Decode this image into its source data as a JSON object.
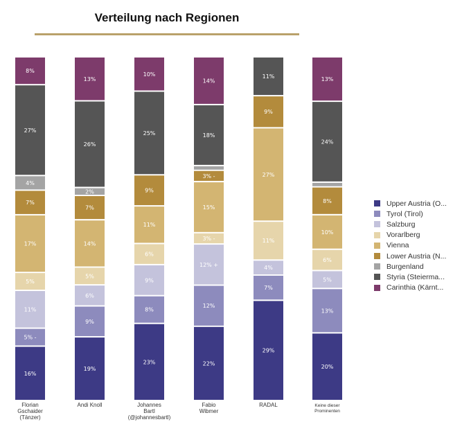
{
  "chart_data": {
    "type": "bar",
    "stacked": true,
    "title": "Verteilung nach Regionen",
    "categories": [
      "Florian Gschaider (Tänzer)",
      "Andi Knoll",
      "Johannes Bartl (@johannesbartl)",
      "Fabio Wibmer",
      "RADAL",
      "Keine dieser Prominenten"
    ],
    "category_lines": [
      [
        "Florian",
        "Gschaider",
        "(Tänzer)"
      ],
      [
        "Andi Knoll"
      ],
      [
        "Johannes",
        "Bartl",
        "(@johannesbartl)"
      ],
      [
        "Fabio",
        "Wibmer"
      ],
      [
        "RADAL"
      ],
      [
        "Keine dieser",
        "Prominenten"
      ]
    ],
    "series": [
      {
        "name": "Upper Austria (O...",
        "color": "#3d3a85",
        "values": [
          16,
          19,
          23,
          22,
          29,
          20
        ],
        "labels": [
          "16%",
          "19%",
          "23%",
          "22%",
          "29%",
          "20%"
        ]
      },
      {
        "name": "Tyrol (Tirol)",
        "color": "#8d8bbd",
        "values": [
          5,
          9,
          8,
          12,
          7,
          13
        ],
        "labels": [
          "5% -",
          "9%",
          "8%",
          "12%",
          "7%",
          "13%"
        ]
      },
      {
        "name": "Salzburg",
        "color": "#c4c3dc",
        "values": [
          11,
          6,
          9,
          12,
          4,
          5
        ],
        "labels": [
          "11%",
          "6%",
          "9%",
          "12% +",
          "4%",
          "5%"
        ]
      },
      {
        "name": "Vorarlberg",
        "color": "#e6d5ab",
        "values": [
          5,
          5,
          6,
          3,
          11,
          6
        ],
        "labels": [
          "5%",
          "5%",
          "6%",
          "3% -",
          "11%",
          "6%"
        ]
      },
      {
        "name": "Vienna",
        "color": "#d3b572",
        "values": [
          17,
          14,
          11,
          15,
          27,
          10
        ],
        "labels": [
          "17%",
          "14%",
          "11%",
          "15%",
          "27%",
          "10%"
        ]
      },
      {
        "name": "Lower Austria (N...",
        "color": "#b38b3c",
        "values": [
          7,
          7,
          9,
          3,
          9,
          8
        ],
        "labels": [
          "7%",
          "7%",
          "9%",
          "3% -",
          "9%",
          "8%"
        ]
      },
      {
        "name": "Burgenland",
        "color": "#a4a4a4",
        "values": [
          4,
          2,
          0,
          1,
          0,
          1
        ],
        "labels": [
          "4%",
          "2%",
          "",
          "",
          "",
          ""
        ]
      },
      {
        "name": "Styria (Steierma...",
        "color": "#555555",
        "values": [
          27,
          26,
          25,
          18,
          11,
          24
        ],
        "labels": [
          "27%",
          "26%",
          "25%",
          "18%",
          "11%",
          "24%"
        ]
      },
      {
        "name": "Carinthia (Kärnt...",
        "color": "#7d3b6b",
        "values": [
          8,
          13,
          10,
          14,
          0,
          13
        ],
        "labels": [
          "8%",
          "13%",
          "10%",
          "14%",
          "",
          "13%"
        ]
      }
    ],
    "ylim": [
      0,
      100
    ],
    "legend": "right"
  }
}
